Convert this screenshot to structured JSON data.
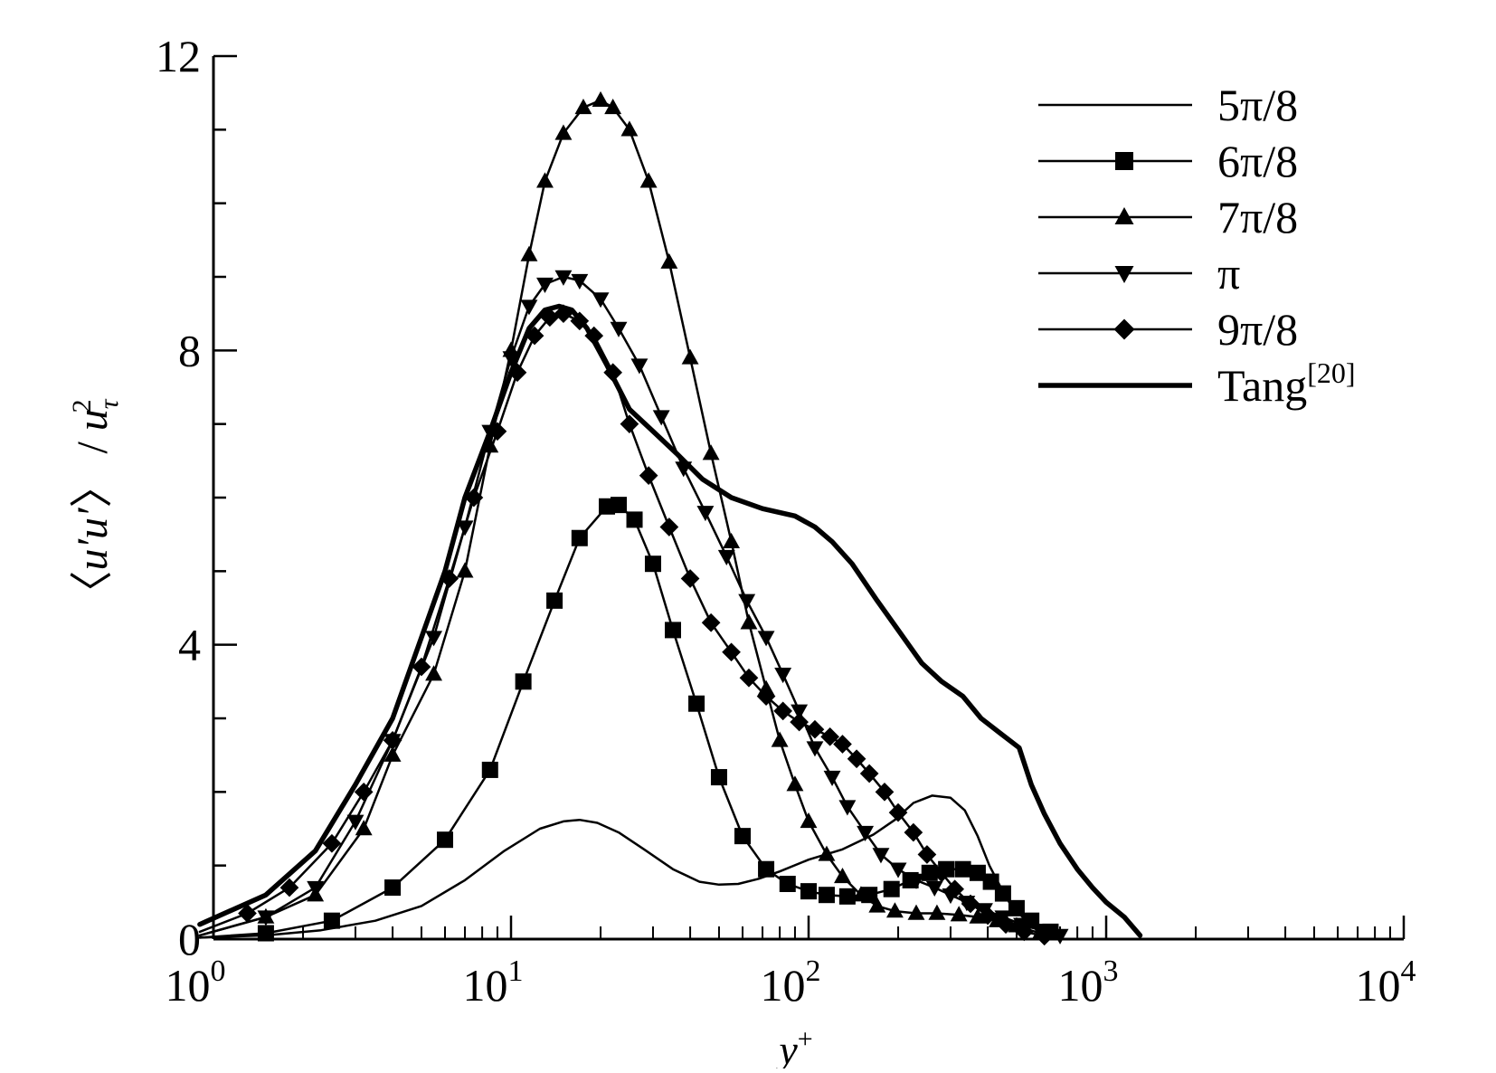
{
  "chart_data": {
    "type": "line",
    "x_scale": "log",
    "xlim": [
      1,
      10000
    ],
    "ylim": [
      0,
      12
    ],
    "grid": false,
    "legend_position": "top-right",
    "xlabel": {
      "base": "y",
      "sup": "+"
    },
    "ylabel": {
      "open": "〈",
      "var": "u′u′",
      "close": "〉",
      "slash": " / ",
      "u": "u",
      "sub": "τ",
      "sup": "2"
    },
    "y_ticks": [
      {
        "value": 0,
        "label": "0"
      },
      {
        "value": 4,
        "label": "4"
      },
      {
        "value": 8,
        "label": "8"
      },
      {
        "value": 12,
        "label": "12"
      }
    ],
    "x_ticks": [
      {
        "value": 1,
        "base": "10",
        "exp": "0"
      },
      {
        "value": 10,
        "base": "10",
        "exp": "1"
      },
      {
        "value": 100,
        "base": "10",
        "exp": "2"
      },
      {
        "value": 1000,
        "base": "10",
        "exp": "3"
      },
      {
        "value": 10000,
        "base": "10",
        "exp": "4"
      }
    ],
    "series": [
      {
        "name": "5π/8",
        "marker": "none",
        "width": 2.5,
        "x": [
          0.9,
          1.5,
          2.3,
          3.5,
          5.0,
          7.0,
          9.5,
          12.5,
          15.0,
          17.0,
          19.5,
          23.0,
          28.0,
          35.0,
          43.0,
          50.0,
          58.0,
          68.0,
          80.0,
          100.0,
          130.0,
          165.0,
          195.0,
          225.0,
          260.0,
          300.0,
          335.0,
          370.0,
          405.0,
          440.0,
          480.0,
          530.0,
          600.0,
          700.0
        ],
        "y": [
          0.02,
          0.05,
          0.12,
          0.25,
          0.45,
          0.8,
          1.2,
          1.5,
          1.6,
          1.62,
          1.58,
          1.45,
          1.22,
          0.95,
          0.78,
          0.74,
          0.75,
          0.82,
          0.92,
          1.08,
          1.22,
          1.42,
          1.62,
          1.85,
          1.95,
          1.92,
          1.75,
          1.4,
          1.0,
          0.72,
          0.45,
          0.28,
          0.15,
          0.06
        ]
      },
      {
        "name": "6π/8",
        "marker": "square",
        "width": 2.5,
        "x": [
          0.9,
          1.5,
          2.5,
          4.0,
          6.0,
          8.5,
          11.0,
          14.0,
          17.0,
          21.0,
          23.0,
          26.0,
          30.0,
          35.0,
          42.0,
          50.0,
          60.0,
          72.0,
          85.0,
          100.0,
          115.0,
          135.0,
          160.0,
          190.0,
          220.0,
          255.0,
          290.0,
          330.0,
          370.0,
          410.0,
          450.0,
          500.0,
          560.0,
          650.0
        ],
        "y": [
          0.02,
          0.08,
          0.25,
          0.7,
          1.35,
          2.3,
          3.5,
          4.6,
          5.45,
          5.88,
          5.9,
          5.7,
          5.1,
          4.2,
          3.2,
          2.2,
          1.4,
          0.95,
          0.75,
          0.65,
          0.6,
          0.58,
          0.6,
          0.68,
          0.8,
          0.9,
          0.95,
          0.95,
          0.9,
          0.78,
          0.62,
          0.42,
          0.25,
          0.1
        ]
      },
      {
        "name": "7π/8",
        "marker": "triangle-up",
        "width": 2.5,
        "x": [
          0.9,
          1.5,
          2.2,
          3.2,
          4.0,
          5.5,
          7.0,
          8.5,
          10.0,
          11.5,
          13.0,
          15.0,
          17.5,
          20.0,
          22.0,
          25.0,
          29.0,
          34.0,
          40.0,
          47.0,
          55.0,
          63.0,
          72.0,
          80.0,
          90.0,
          100.0,
          115.0,
          130.0,
          150.0,
          170.0,
          195.0,
          230.0,
          270.0,
          320.0,
          370.0,
          430.0,
          500.0,
          600.0
        ],
        "y": [
          0.05,
          0.3,
          0.6,
          1.5,
          2.5,
          3.6,
          5.0,
          6.7,
          8.0,
          9.3,
          10.3,
          10.95,
          11.3,
          11.4,
          11.3,
          11.0,
          10.3,
          9.2,
          7.9,
          6.6,
          5.4,
          4.3,
          3.4,
          2.7,
          2.1,
          1.6,
          1.15,
          0.85,
          0.6,
          0.45,
          0.38,
          0.35,
          0.35,
          0.33,
          0.3,
          0.25,
          0.18,
          0.08
        ]
      },
      {
        "name": "π",
        "marker": "triangle-down",
        "width": 2.5,
        "x": [
          0.9,
          1.5,
          2.2,
          3.0,
          4.0,
          5.5,
          7.0,
          8.5,
          10.0,
          11.5,
          13.0,
          15.0,
          17.0,
          20.0,
          23.0,
          27.0,
          32.0,
          38.0,
          45.0,
          53.0,
          62.0,
          72.0,
          82.0,
          93.0,
          105.0,
          120.0,
          135.0,
          155.0,
          175.0,
          200.0,
          230.0,
          265.0,
          300.0,
          340.0,
          390.0,
          450.0,
          520.0,
          600.0,
          700.0
        ],
        "y": [
          0.05,
          0.3,
          0.7,
          1.6,
          2.7,
          4.1,
          5.6,
          6.9,
          7.9,
          8.6,
          8.9,
          9.0,
          8.95,
          8.7,
          8.3,
          7.8,
          7.1,
          6.4,
          5.8,
          5.2,
          4.6,
          4.1,
          3.6,
          3.1,
          2.6,
          2.2,
          1.8,
          1.45,
          1.15,
          0.95,
          0.8,
          0.7,
          0.6,
          0.5,
          0.4,
          0.3,
          0.2,
          0.12,
          0.05
        ]
      },
      {
        "name": "9π/8",
        "marker": "diamond",
        "width": 2.5,
        "x": [
          0.9,
          1.3,
          1.8,
          2.5,
          3.2,
          4.0,
          5.0,
          6.2,
          7.5,
          9.0,
          10.5,
          12.0,
          13.5,
          15.0,
          17.0,
          19.0,
          22.0,
          25.0,
          29.0,
          34.0,
          40.0,
          47.0,
          55.0,
          63.0,
          72.0,
          82.0,
          93.0,
          105.0,
          118.0,
          130.0,
          145.0,
          160.0,
          180.0,
          200.0,
          225.0,
          250.0,
          280.0,
          310.0,
          350.0,
          400.0,
          460.0,
          530.0,
          620.0
        ],
        "y": [
          0.1,
          0.35,
          0.7,
          1.3,
          2.0,
          2.7,
          3.7,
          4.9,
          6.0,
          6.9,
          7.7,
          8.2,
          8.45,
          8.5,
          8.4,
          8.2,
          7.7,
          7.0,
          6.3,
          5.6,
          4.9,
          4.3,
          3.9,
          3.55,
          3.3,
          3.1,
          2.95,
          2.85,
          2.75,
          2.65,
          2.45,
          2.25,
          2.0,
          1.72,
          1.45,
          1.15,
          0.9,
          0.68,
          0.48,
          0.32,
          0.2,
          0.1,
          0.04
        ]
      },
      {
        "name": "Tang[20]",
        "marker": "none",
        "width": 5.5,
        "x": [
          0.9,
          1.5,
          2.2,
          3.0,
          4.0,
          5.0,
          6.0,
          7.0,
          8.5,
          10.0,
          11.5,
          13.0,
          14.5,
          16.0,
          18.0,
          21.0,
          25.0,
          30.0,
          36.0,
          44.0,
          55.0,
          70.0,
          90.0,
          105.0,
          120.0,
          140.0,
          170.0,
          200.0,
          240.0,
          280.0,
          330.0,
          380.0,
          440.0,
          510.0,
          560.0,
          620.0,
          700.0,
          800.0,
          900.0,
          1000.0,
          1150.0,
          1300.0
        ],
        "y": [
          0.2,
          0.6,
          1.2,
          2.1,
          3.0,
          4.1,
          5.0,
          6.0,
          6.9,
          7.7,
          8.3,
          8.55,
          8.6,
          8.55,
          8.3,
          7.8,
          7.2,
          6.9,
          6.6,
          6.25,
          6.0,
          5.85,
          5.75,
          5.6,
          5.4,
          5.1,
          4.6,
          4.2,
          3.75,
          3.5,
          3.3,
          3.0,
          2.8,
          2.6,
          2.1,
          1.7,
          1.3,
          0.95,
          0.7,
          0.5,
          0.3,
          0.05
        ]
      }
    ]
  },
  "legend": {
    "items": [
      {
        "label": "5π/8",
        "sup": ""
      },
      {
        "label": "6π/8",
        "sup": ""
      },
      {
        "label": "7π/8",
        "sup": ""
      },
      {
        "label": "π",
        "sup": ""
      },
      {
        "label": "9π/8",
        "sup": ""
      },
      {
        "label": "Tang",
        "sup": "[20]"
      }
    ]
  }
}
